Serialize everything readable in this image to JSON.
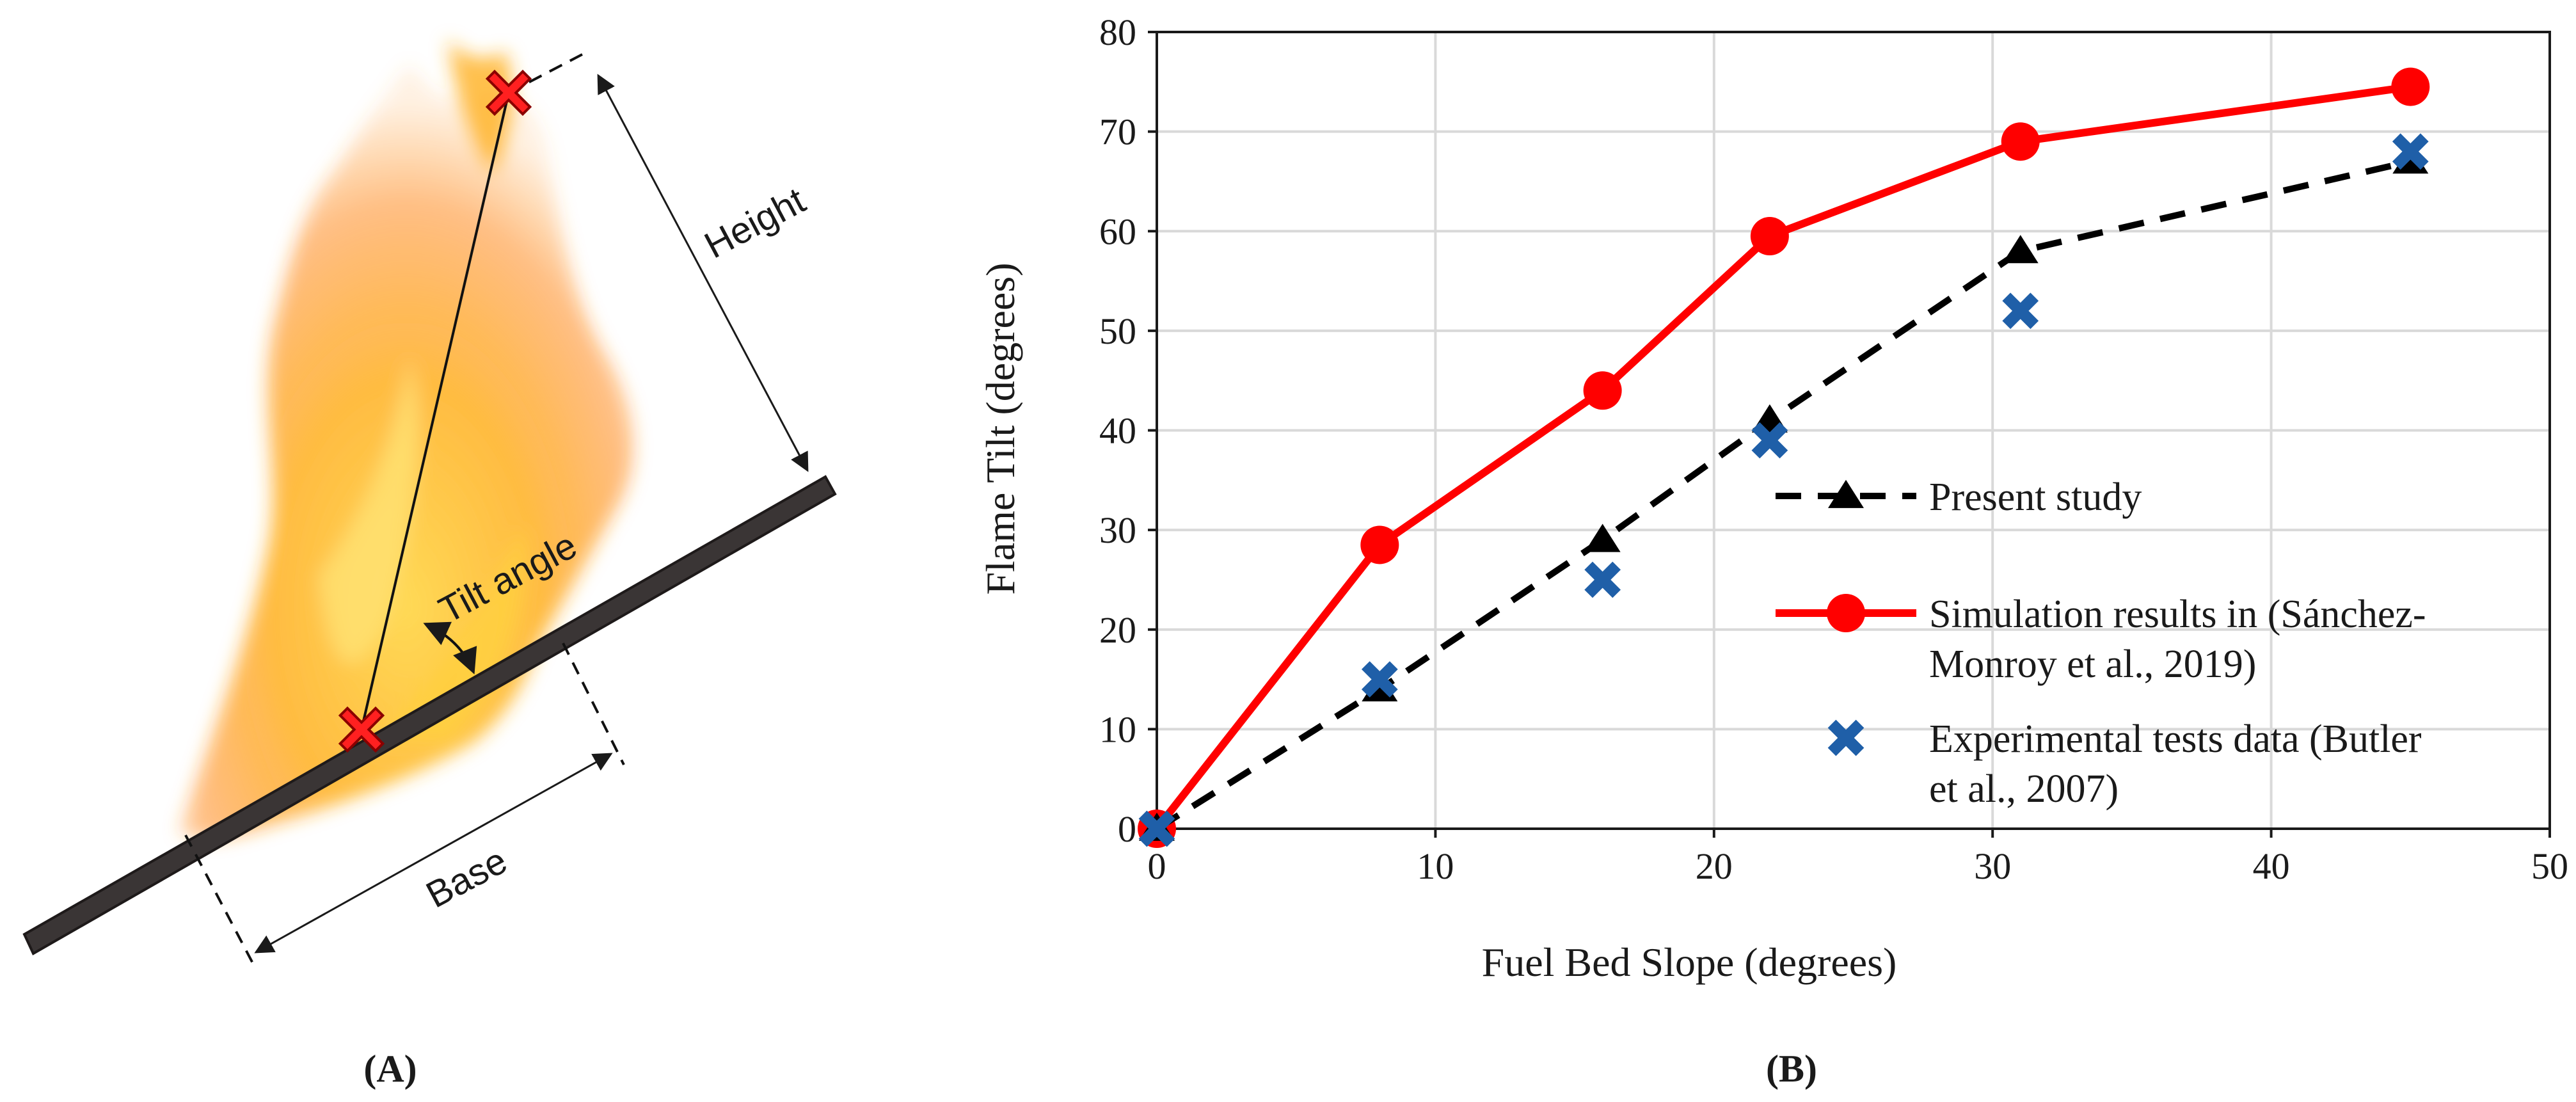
{
  "panel_a": {
    "caption": "(A)",
    "labels": {
      "height": "Height",
      "tilt_angle": "Tilt angle",
      "base": "Base"
    }
  },
  "panel_b": {
    "caption": "(B)"
  },
  "colors": {
    "present": "#000000",
    "simulation": "#ff0000",
    "experimental": "#1f5fa8",
    "grid": "#d9d9d9",
    "slab": "#3a3535"
  },
  "chart_data": {
    "type": "line",
    "title": "",
    "xlabel": "Fuel Bed Slope (degrees)",
    "ylabel": "Flame Tilt (degrees)",
    "xlim": [
      0,
      50
    ],
    "ylim": [
      0,
      80
    ],
    "xticks": [
      "0",
      "10",
      "20",
      "30",
      "40",
      "50"
    ],
    "yticks": [
      "0",
      "10",
      "20",
      "30",
      "40",
      "50",
      "60",
      "70",
      "80"
    ],
    "grid": true,
    "series": [
      {
        "name": "Present study",
        "style": "dashed-triangle",
        "x": [
          0,
          8,
          16,
          22,
          31,
          45
        ],
        "y": [
          0,
          14,
          29,
          41,
          58,
          67
        ]
      },
      {
        "name": "Simulation results in (Sánchez-Monroy et al., 2019)",
        "style": "solid-circle",
        "x": [
          0,
          8,
          16,
          22,
          31,
          45
        ],
        "y": [
          0,
          28.5,
          44,
          59.5,
          69,
          74.5
        ]
      },
      {
        "name": "Experimental tests data (Butler et al., 2007)",
        "style": "cross",
        "x": [
          0,
          8,
          16,
          22,
          31,
          45
        ],
        "y": [
          0,
          15,
          25,
          39,
          52,
          68
        ]
      }
    ],
    "legend": {
      "position": "center-right",
      "entries": [
        [
          "Present study"
        ],
        [
          "Simulation results in (Sánchez-",
          "Monroy et al., 2019)"
        ],
        [
          "Experimental tests data (Butler",
          "et al., 2007)"
        ]
      ]
    }
  }
}
